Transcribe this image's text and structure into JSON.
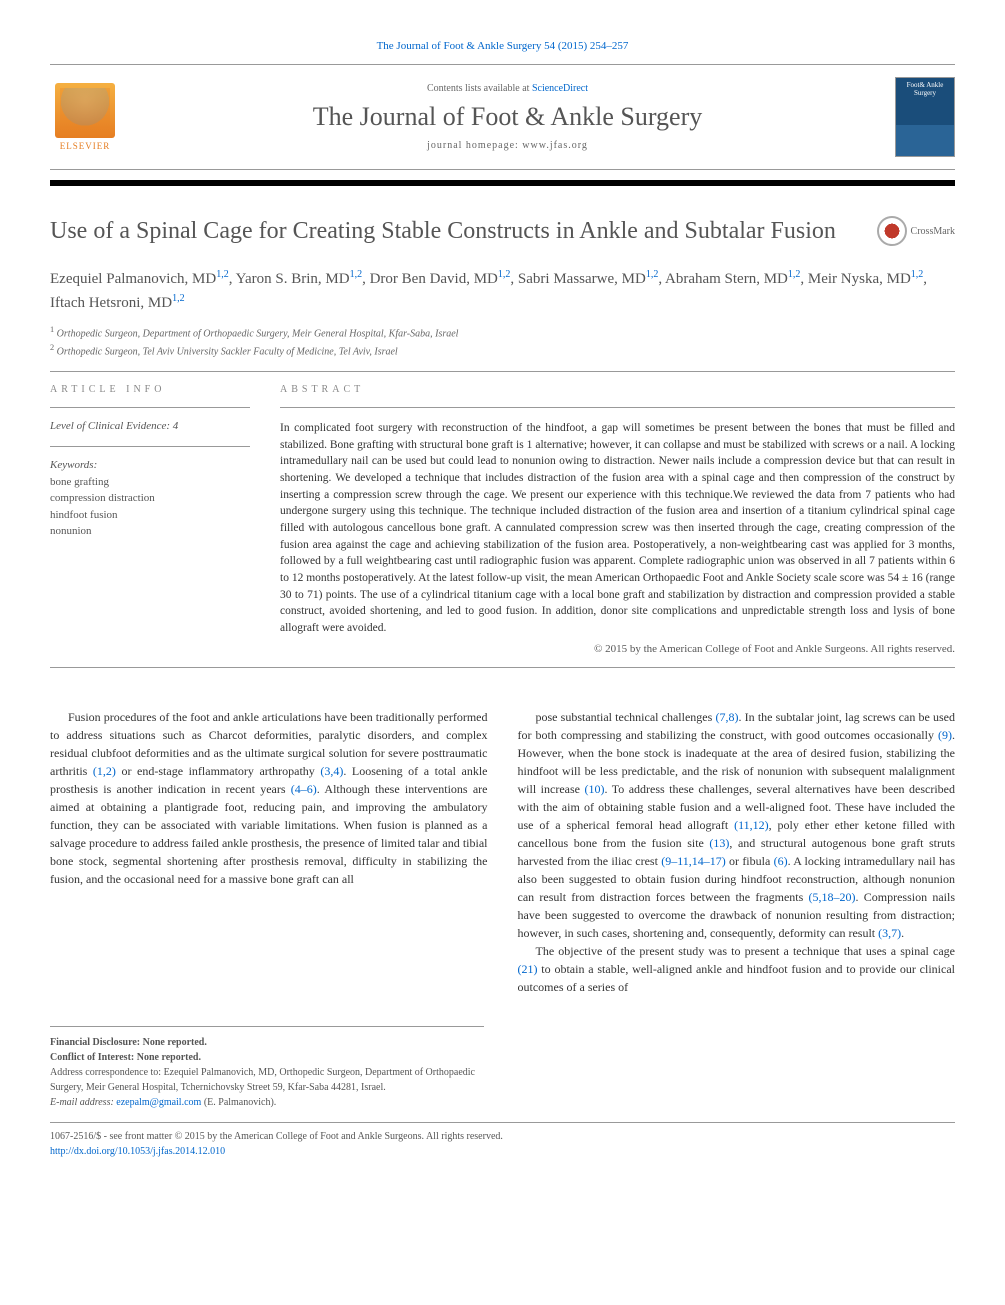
{
  "journalRef": "The Journal of Foot & Ankle Surgery 54 (2015) 254–257",
  "header": {
    "publisherName": "ELSEVIER",
    "contentsPrefix": "Contents lists available at ",
    "contentsLink": "ScienceDirect",
    "journalTitle": "The Journal of Foot & Ankle Surgery",
    "homepagePrefix": "journal homepage: ",
    "homepageUrl": "www.jfas.org",
    "coverTitle": "Foot& Ankle Surgery"
  },
  "crossmark": "CrossMark",
  "article": {
    "title": "Use of a Spinal Cage for Creating Stable Constructs in Ankle and Subtalar Fusion",
    "authorsHtml": "Ezequiel Palmanovich, MD<sup>1,2</sup>, Yaron S. Brin, MD<sup>1,2</sup>, Dror Ben David, MD<sup>1,2</sup>, Sabri Massarwe, MD<sup>1,2</sup>, Abraham Stern, MD<sup>1,2</sup>, Meir Nyska, MD<sup>1,2</sup>, Iftach Hetsroni, MD<sup>1,2</sup>",
    "affiliations": [
      "Orthopedic Surgeon, Department of Orthopaedic Surgery, Meir General Hospital, Kfar-Saba, Israel",
      "Orthopedic Surgeon, Tel Aviv University Sackler Faculty of Medicine, Tel Aviv, Israel"
    ]
  },
  "info": {
    "sectionLabel": "ARTICLE INFO",
    "evidenceLabel": "Level of Clinical Evidence:",
    "evidenceValue": "4",
    "keywordsLabel": "Keywords:",
    "keywords": [
      "bone grafting",
      "compression distraction",
      "hindfoot fusion",
      "nonunion"
    ]
  },
  "abstract": {
    "sectionLabel": "ABSTRACT",
    "text": "In complicated foot surgery with reconstruction of the hindfoot, a gap will sometimes be present between the bones that must be filled and stabilized. Bone grafting with structural bone graft is 1 alternative; however, it can collapse and must be stabilized with screws or a nail. A locking intramedullary nail can be used but could lead to nonunion owing to distraction. Newer nails include a compression device but that can result in shortening. We developed a technique that includes distraction of the fusion area with a spinal cage and then compression of the construct by inserting a compression screw through the cage. We present our experience with this technique.We reviewed the data from 7 patients who had undergone surgery using this technique. The technique included distraction of the fusion area and insertion of a titanium cylindrical spinal cage filled with autologous cancellous bone graft. A cannulated compression screw was then inserted through the cage, creating compression of the fusion area against the cage and achieving stabilization of the fusion area. Postoperatively, a non-weightbearing cast was applied for 3 months, followed by a full weightbearing cast until radiographic fusion was apparent. Complete radiographic union was observed in all 7 patients within 6 to 12 months postoperatively. At the latest follow-up visit, the mean American Orthopaedic Foot and Ankle Society scale score was 54 ± 16 (range 30 to 71) points. The use of a cylindrical titanium cage with a local bone graft and stabilization by distraction and compression provided a stable construct, avoided shortening, and led to good fusion. In addition, donor site complications and unpredictable strength loss and lysis of bone allograft were avoided.",
    "copyright": "© 2015 by the American College of Foot and Ankle Surgeons. All rights reserved."
  },
  "body": {
    "col1": "Fusion procedures of the foot and ankle articulations have been traditionally performed to address situations such as Charcot deformities, paralytic disorders, and complex residual clubfoot deformities and as the ultimate surgical solution for severe posttraumatic arthritis (1,2) or end-stage inflammatory arthropathy (3,4). Loosening of a total ankle prosthesis is another indication in recent years (4–6). Although these interventions are aimed at obtaining a plantigrade foot, reducing pain, and improving the ambulatory function, they can be associated with variable limitations. When fusion is planned as a salvage procedure to address failed ankle prosthesis, the presence of limited talar and tibial bone stock, segmental shortening after prosthesis removal, difficulty in stabilizing the fusion, and the occasional need for a massive bone graft can all",
    "col2p1": "pose substantial technical challenges (7,8). In the subtalar joint, lag screws can be used for both compressing and stabilizing the construct, with good outcomes occasionally (9). However, when the bone stock is inadequate at the area of desired fusion, stabilizing the hindfoot will be less predictable, and the risk of nonunion with subsequent malalignment will increase (10). To address these challenges, several alternatives have been described with the aim of obtaining stable fusion and a well-aligned foot. These have included the use of a spherical femoral head allograft (11,12), poly ether ether ketone filled with cancellous bone from the fusion site (13), and structural autogenous bone graft struts harvested from the iliac crest (9–11,14–17) or fibula (6). A locking intramedullary nail has also been suggested to obtain fusion during hindfoot reconstruction, although nonunion can result from distraction forces between the fragments (5,18–20). Compression nails have been suggested to overcome the drawback of nonunion resulting from distraction; however, in such cases, shortening and, consequently, deformity can result (3,7).",
    "col2p2": "The objective of the present study was to present a technique that uses a spinal cage (21) to obtain a stable, well-aligned ankle and hindfoot fusion and to provide our clinical outcomes of a series of",
    "refs": {
      "r1": "(1,2)",
      "r2": "(3,4)",
      "r3": "(4–6)",
      "r4": "(7,8)",
      "r5": "(9)",
      "r6": "(10)",
      "r7": "(11,12)",
      "r8": "(13)",
      "r9": "(9–11,14–17)",
      "r10": "(6)",
      "r11": "(5,18–20)",
      "r12": "(3,7)",
      "r13": "(21)"
    }
  },
  "footnotes": {
    "financial": "Financial Disclosure: None reported.",
    "conflict": "Conflict of Interest: None reported.",
    "correspondence": "Address correspondence to: Ezequiel Palmanovich, MD, Orthopedic Surgeon, Department of Orthopaedic Surgery, Meir General Hospital, Tchernichovsky Street 59, Kfar-Saba 44281, Israel.",
    "emailLabel": "E-mail address:",
    "email": "ezepalm@gmail.com",
    "emailSuffix": "(E. Palmanovich)."
  },
  "footer": {
    "line1": "1067-2516/$ - see front matter © 2015 by the American College of Foot and Ankle Surgeons. All rights reserved.",
    "doi": "http://dx.doi.org/10.1053/j.jfas.2014.12.010"
  },
  "colors": {
    "link": "#0066cc",
    "elsevier": "#e67e22",
    "titleGray": "#555555",
    "ruleBlack": "#000000"
  }
}
